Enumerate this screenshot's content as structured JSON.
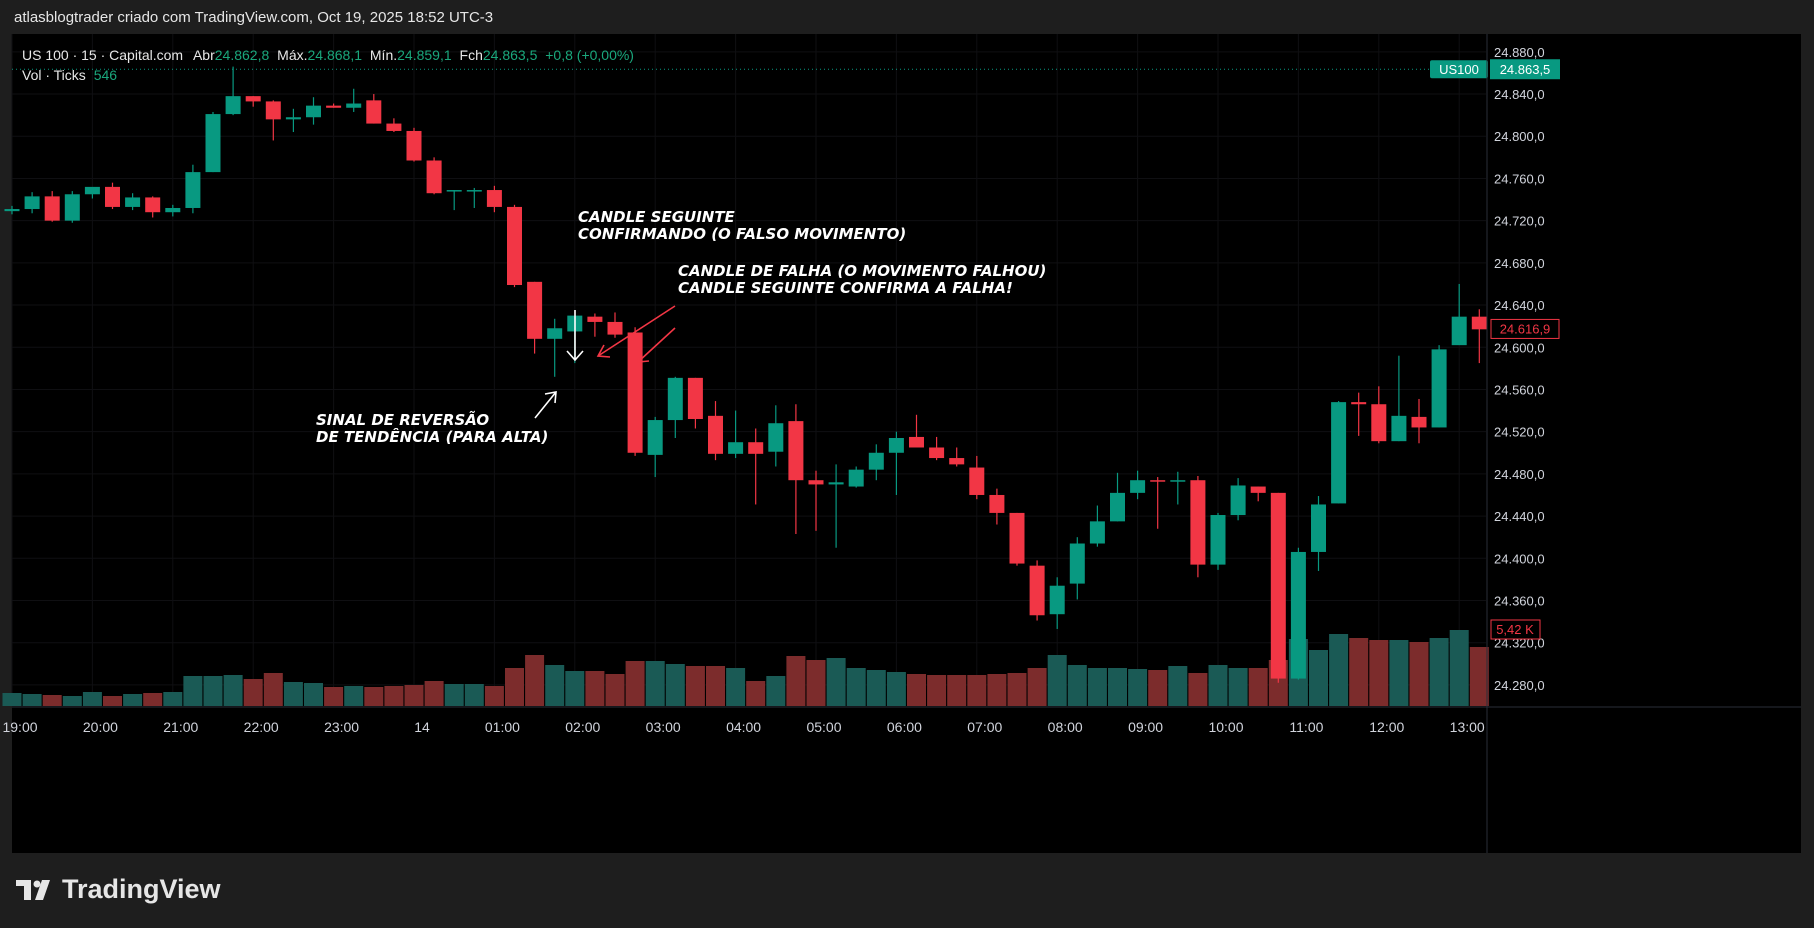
{
  "header": {
    "caption": "atlasblogtrader criado com TradingView.com, Oct 19, 2025 18:52 UTC-3"
  },
  "legend": {
    "symbol": "US 100 · 15 · Capital.com",
    "open_label": "Abr",
    "open": "24.862,8",
    "high_label": "Máx.",
    "high": "24.868,1",
    "low_label": "Mín.",
    "low": "24.859,1",
    "close_label": "Fch",
    "close": "24.863,5",
    "change": "+0,8 (+0,00%)",
    "volume_label": "Vol · Ticks",
    "volume": "546"
  },
  "brand": {
    "name": "TradingView"
  },
  "colors": {
    "up": "#089981",
    "down": "#f23645",
    "volUp": "#1a5a55",
    "volDown": "#7c2c2c",
    "axisText": "#d1d4dc"
  },
  "chart_data": {
    "type": "candlestick",
    "ylim": [
      24260,
      24895
    ],
    "y_ticks": [
      "24.880,0",
      "24.840,0",
      "24.800,0",
      "24.760,0",
      "24.720,0",
      "24.680,0",
      "24.640,0",
      "24.600,0",
      "24.560,0",
      "24.520,0",
      "24.480,0",
      "24.440,0",
      "24.400,0",
      "24.360,0",
      "24.320,0",
      "24.280,0"
    ],
    "y_tick_values": [
      24880,
      24840,
      24800,
      24760,
      24720,
      24680,
      24640,
      24600,
      24560,
      24520,
      24480,
      24440,
      24400,
      24360,
      24320,
      24280
    ],
    "x_ticks": [
      "19:00",
      "20:00",
      "21:00",
      "22:00",
      "23:00",
      "14",
      "01:00",
      "02:00",
      "03:00",
      "04:00",
      "05:00",
      "06:00",
      "07:00",
      "08:00",
      "09:00",
      "10:00",
      "11:00",
      "12:00",
      "13:00"
    ],
    "x_tick_index": [
      0,
      4,
      8,
      12,
      16,
      20,
      24,
      28,
      32,
      36,
      40,
      44,
      48,
      52,
      56,
      60,
      64,
      68,
      72
    ],
    "candles": [
      {
        "o": 24729,
        "h": 24734,
        "l": 24726,
        "c": 24731
      },
      {
        "o": 24731,
        "h": 24747,
        "l": 24727,
        "c": 24743
      },
      {
        "o": 24743,
        "h": 24748,
        "l": 24719,
        "c": 24720
      },
      {
        "o": 24720,
        "h": 24748,
        "l": 24718,
        "c": 24745
      },
      {
        "o": 24745,
        "h": 24751,
        "l": 24741,
        "c": 24752
      },
      {
        "o": 24752,
        "h": 24756,
        "l": 24731,
        "c": 24733
      },
      {
        "o": 24733,
        "h": 24746,
        "l": 24730,
        "c": 24742
      },
      {
        "o": 24742,
        "h": 24743,
        "l": 24723,
        "c": 24728
      },
      {
        "o": 24728,
        "h": 24735,
        "l": 24724,
        "c": 24732
      },
      {
        "o": 24732,
        "h": 24773,
        "l": 24727,
        "c": 24766
      },
      {
        "o": 24766,
        "h": 24823,
        "l": 24766,
        "c": 24821
      },
      {
        "o": 24821,
        "h": 24866,
        "l": 24820,
        "c": 24838
      },
      {
        "o": 24838,
        "h": 24838,
        "l": 24828,
        "c": 24833
      },
      {
        "o": 24833,
        "h": 24834,
        "l": 24796,
        "c": 24816
      },
      {
        "o": 24816,
        "h": 24826,
        "l": 24804,
        "c": 24818
      },
      {
        "o": 24818,
        "h": 24837,
        "l": 24811,
        "c": 24829
      },
      {
        "o": 24829,
        "h": 24831,
        "l": 24827,
        "c": 24827
      },
      {
        "o": 24827,
        "h": 24845,
        "l": 24823,
        "c": 24831
      },
      {
        "o": 24834,
        "h": 24840,
        "l": 24812,
        "c": 24812
      },
      {
        "o": 24812,
        "h": 24817,
        "l": 24804,
        "c": 24805
      },
      {
        "o": 24805,
        "h": 24808,
        "l": 24776,
        "c": 24777
      },
      {
        "o": 24777,
        "h": 24780,
        "l": 24745,
        "c": 24746
      },
      {
        "o": 24749,
        "h": 24749,
        "l": 24730,
        "c": 24749
      },
      {
        "o": 24749,
        "h": 24751,
        "l": 24732,
        "c": 24749
      },
      {
        "o": 24749,
        "h": 24753,
        "l": 24728,
        "c": 24733
      },
      {
        "o": 24733,
        "h": 24735,
        "l": 24657,
        "c": 24659
      },
      {
        "o": 24662,
        "h": 24662,
        "l": 24594,
        "c": 24608
      },
      {
        "o": 24608,
        "h": 24627,
        "l": 24572,
        "c": 24618
      },
      {
        "o": 24615,
        "h": 24629,
        "l": 24585,
        "c": 24630
      },
      {
        "o": 24629,
        "h": 24632,
        "l": 24610,
        "c": 24624
      },
      {
        "o": 24624,
        "h": 24633,
        "l": 24609,
        "c": 24612
      },
      {
        "o": 24614,
        "h": 24619,
        "l": 24497,
        "c": 24500
      },
      {
        "o": 24498,
        "h": 24534,
        "l": 24477,
        "c": 24531
      },
      {
        "o": 24531,
        "h": 24572,
        "l": 24514,
        "c": 24571
      },
      {
        "o": 24571,
        "h": 24571,
        "l": 24523,
        "c": 24532
      },
      {
        "o": 24535,
        "h": 24549,
        "l": 24493,
        "c": 24499
      },
      {
        "o": 24499,
        "h": 24540,
        "l": 24495,
        "c": 24510
      },
      {
        "o": 24510,
        "h": 24523,
        "l": 24451,
        "c": 24499
      },
      {
        "o": 24501,
        "h": 24545,
        "l": 24487,
        "c": 24528
      },
      {
        "o": 24530,
        "h": 24546,
        "l": 24423,
        "c": 24474
      },
      {
        "o": 24474,
        "h": 24483,
        "l": 24426,
        "c": 24470
      },
      {
        "o": 24470,
        "h": 24489,
        "l": 24410,
        "c": 24472
      },
      {
        "o": 24468,
        "h": 24487,
        "l": 24467,
        "c": 24484
      },
      {
        "o": 24484,
        "h": 24508,
        "l": 24474,
        "c": 24500
      },
      {
        "o": 24500,
        "h": 24520,
        "l": 24460,
        "c": 24514
      },
      {
        "o": 24515,
        "h": 24536,
        "l": 24506,
        "c": 24505
      },
      {
        "o": 24505,
        "h": 24515,
        "l": 24493,
        "c": 24495
      },
      {
        "o": 24495,
        "h": 24505,
        "l": 24487,
        "c": 24489
      },
      {
        "o": 24486,
        "h": 24497,
        "l": 24456,
        "c": 24460
      },
      {
        "o": 24460,
        "h": 24466,
        "l": 24432,
        "c": 24443
      },
      {
        "o": 24443,
        "h": 24443,
        "l": 24393,
        "c": 24395
      },
      {
        "o": 24393,
        "h": 24398,
        "l": 24341,
        "c": 24346
      },
      {
        "o": 24347,
        "h": 24382,
        "l": 24333,
        "c": 24374
      },
      {
        "o": 24376,
        "h": 24420,
        "l": 24361,
        "c": 24414
      },
      {
        "o": 24414,
        "h": 24450,
        "l": 24411,
        "c": 24435
      },
      {
        "o": 24435,
        "h": 24481,
        "l": 24435,
        "c": 24462
      },
      {
        "o": 24462,
        "h": 24483,
        "l": 24456,
        "c": 24474
      },
      {
        "o": 24474,
        "h": 24477,
        "l": 24428,
        "c": 24473
      },
      {
        "o": 24474,
        "h": 24482,
        "l": 24451,
        "c": 24474
      },
      {
        "o": 24474,
        "h": 24478,
        "l": 24382,
        "c": 24394
      },
      {
        "o": 24394,
        "h": 24443,
        "l": 24389,
        "c": 24441
      },
      {
        "o": 24441,
        "h": 24476,
        "l": 24436,
        "c": 24469
      },
      {
        "o": 24468,
        "h": 24468,
        "l": 24454,
        "c": 24462
      },
      {
        "o": 24462,
        "h": 24462,
        "l": 24282,
        "c": 24286
      },
      {
        "o": 24286,
        "h": 24410,
        "l": 24285,
        "c": 24406
      },
      {
        "o": 24406,
        "h": 24459,
        "l": 24388,
        "c": 24451
      },
      {
        "o": 24452,
        "h": 24549,
        "l": 24452,
        "c": 24548
      },
      {
        "o": 24548,
        "h": 24557,
        "l": 24516,
        "c": 24546
      },
      {
        "o": 24546,
        "h": 24563,
        "l": 24509,
        "c": 24511
      },
      {
        "o": 24511,
        "h": 24592,
        "l": 24511,
        "c": 24535
      },
      {
        "o": 24534,
        "h": 24551,
        "l": 24509,
        "c": 24524
      },
      {
        "o": 24524,
        "h": 24602,
        "l": 24524,
        "c": 24598
      },
      {
        "o": 24602,
        "h": 24660,
        "l": 24603,
        "c": 24629
      },
      {
        "o": 24629,
        "h": 24636,
        "l": 24585,
        "c": 24617
      }
    ],
    "volume": [
      13,
      12,
      11,
      10,
      14,
      10,
      12,
      13,
      14,
      30,
      30,
      31,
      27,
      33,
      24,
      23,
      19,
      20,
      19,
      20,
      21,
      25,
      22,
      22,
      20,
      38,
      51,
      41,
      35,
      35,
      32,
      45,
      45,
      42,
      40,
      40,
      38,
      25,
      30,
      50,
      46,
      48,
      38,
      36,
      34,
      32,
      31,
      31,
      31,
      32,
      33,
      38,
      51,
      41,
      38,
      38,
      37,
      36,
      40,
      33,
      41,
      38,
      38,
      46,
      67,
      56,
      72,
      68,
      66,
      66,
      64,
      68,
      76,
      59
    ],
    "current_price": {
      "value": 24863.5,
      "label": "24.863,5",
      "tag": "US100"
    },
    "last_price": {
      "value": 24616.9,
      "label": "24.616,9"
    },
    "volume_label": "5,42 K",
    "annotations": [
      {
        "id": "confirm",
        "lines": [
          "CANDLE SEGUINTE",
          "CONFIRMANDO (O FALSO MOVIMENTO)"
        ]
      },
      {
        "id": "failure",
        "lines": [
          "CANDLE DE FALHA (O MOVIMENTO FALHOU)",
          "CANDLE SEGUINTE CONFIRMA A FALHA!"
        ]
      },
      {
        "id": "reversal",
        "lines": [
          "SINAL DE REVERSÃO",
          "DE TENDÊNCIA (PARA ALTA)"
        ]
      }
    ]
  }
}
